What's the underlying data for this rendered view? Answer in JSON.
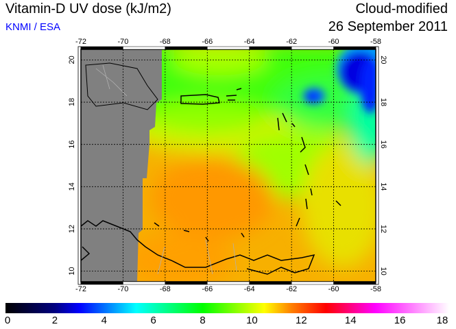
{
  "header": {
    "title": "Vitamin-D UV dose (kJ/m2)",
    "credit": "KNMI / ESA",
    "mode": "Cloud-modified",
    "date": "26 September 2011"
  },
  "map": {
    "lon_ticks": [
      "-72",
      "-70",
      "-68",
      "-66",
      "-64",
      "-62",
      "-60",
      "-58"
    ],
    "lat_ticks": [
      "20",
      "18",
      "16",
      "14",
      "12",
      "10"
    ],
    "lon_range": [
      -72,
      -58
    ],
    "lat_range": [
      9.5,
      20.5
    ]
  },
  "colorbar": {
    "labels": [
      "0",
      "2",
      "4",
      "6",
      "8",
      "10",
      "12",
      "14",
      "16",
      "18"
    ],
    "range": [
      0,
      18
    ],
    "colors": [
      "#000000",
      "#000080",
      "#0000ff",
      "#00ffff",
      "#00ff00",
      "#ffff00",
      "#ff8000",
      "#ff0000",
      "#ff00ff",
      "#ffffff"
    ]
  }
}
